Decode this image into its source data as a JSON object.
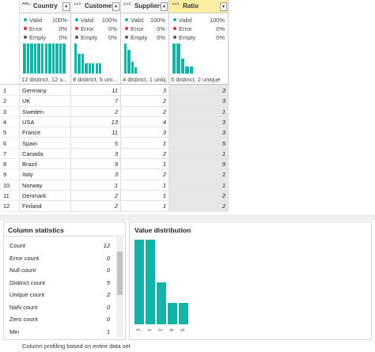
{
  "columns": [
    {
      "type_icon": "ABC",
      "name": "Country",
      "quality": [
        {
          "label": "Valid",
          "value": "100%"
        },
        {
          "label": "Error",
          "value": "0%"
        },
        {
          "label": "Empty",
          "value": "0%"
        }
      ],
      "distribution": [
        1,
        1,
        1,
        1,
        1,
        1,
        1,
        1,
        1,
        1,
        1,
        1
      ],
      "summary": "12 distinct, 12 u..."
    },
    {
      "type_icon": "123",
      "name": "Customers",
      "quality": [
        {
          "label": "Valid",
          "value": "100%"
        },
        {
          "label": "Error",
          "value": "0%"
        },
        {
          "label": "Empty",
          "value": "0%"
        }
      ],
      "distribution": [
        3,
        2,
        2,
        1,
        1,
        1,
        1,
        1
      ],
      "summary": "8 distinct, 5 uni..."
    },
    {
      "type_icon": "123",
      "name": "Suppliers",
      "quality": [
        {
          "label": "Valid",
          "value": "100%"
        },
        {
          "label": "Error",
          "value": "0%"
        },
        {
          "label": "Empty",
          "value": "0%"
        }
      ],
      "distribution": [
        5,
        4,
        2,
        1
      ],
      "summary": "4 distinct, 1 uniq..."
    },
    {
      "type_icon": "123",
      "name": "Ratio",
      "quality": [
        {
          "label": "Valid",
          "value": "100%"
        },
        {
          "label": "Error",
          "value": "0%"
        },
        {
          "label": "Empty",
          "value": "0%"
        }
      ],
      "distribution": [
        4,
        4,
        2,
        1,
        1
      ],
      "summary": "5 distinct, 2 unique"
    }
  ],
  "row_numbers": [
    1,
    2,
    3,
    4,
    5,
    6,
    7,
    8,
    9,
    10,
    11,
    12
  ],
  "rows": [
    [
      "Germany",
      11,
      3,
      3
    ],
    [
      "UK",
      7,
      2,
      3
    ],
    [
      "Sweden",
      2,
      2,
      1
    ],
    [
      "USA",
      13,
      4,
      3
    ],
    [
      "France",
      11,
      3,
      3
    ],
    [
      "Spain",
      5,
      1,
      5
    ],
    [
      "Canada",
      3,
      2,
      1
    ],
    [
      "Brazil",
      9,
      1,
      9
    ],
    [
      "Italy",
      3,
      2,
      1
    ],
    [
      "Norway",
      1,
      1,
      1
    ],
    [
      "Denmark",
      2,
      1,
      2
    ],
    [
      "Finland",
      2,
      1,
      2
    ]
  ],
  "column_statistics": {
    "title": "Column statistics",
    "stats": [
      {
        "label": "Count",
        "value": 12
      },
      {
        "label": "Error count",
        "value": 0
      },
      {
        "label": "Null count",
        "value": 0
      },
      {
        "label": "Distinct count",
        "value": 5
      },
      {
        "label": "Unique count",
        "value": 2
      },
      {
        "label": "NaN count",
        "value": 0
      },
      {
        "label": "Zero count",
        "value": 0
      },
      {
        "label": "Min",
        "value": 1
      }
    ]
  },
  "value_distribution": {
    "title": "Value distribution",
    "categories": [
      "3",
      "1",
      "2",
      "9",
      "5"
    ],
    "values": [
      4,
      4,
      2,
      1,
      1
    ]
  },
  "footer": "Column profiling based on entire data set"
}
